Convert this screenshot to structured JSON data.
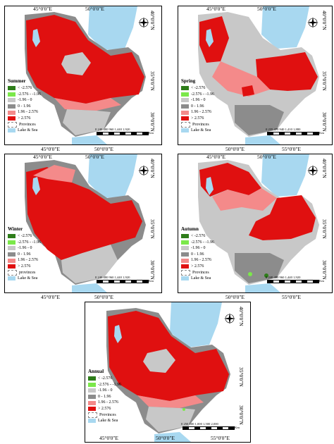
{
  "coords": {
    "lon_45": "45°0'0\"E",
    "lon_50": "50°0'0\"E",
    "lon_55": "55°0'0\"E",
    "lat_40": "40°0'0\"N",
    "lat_35": "35°0'0\"N",
    "lat_30": "30°0'0\"N"
  },
  "legend_items": [
    {
      "label": "< -2.576",
      "color": "#2e7d1a"
    },
    {
      "label": "-2.576 - -1.96",
      "color": "#7be84a"
    },
    {
      "label": "-1.96 - 0",
      "color": "#c8c8c8"
    },
    {
      "label": "0 - 1.96",
      "color": "#8c8c8c"
    },
    {
      "label": "1.96 - 2.576",
      "color": "#f48a8a"
    },
    {
      "label": "> 2.576",
      "color": "#e01010"
    },
    {
      "label": "Provinces",
      "color": "#ffffff"
    },
    {
      "label": "Lake & Sea",
      "color": "#a8d8f0"
    }
  ],
  "panels": [
    {
      "season": "Summer",
      "provinces_label": "Provinces",
      "scale_text": "0 240 480   960   1,440  1,920",
      "scale_unit": "Km"
    },
    {
      "season": "Spring",
      "provinces_label": "Provinces",
      "scale_text": "0 235 470   940   1,410  1,880",
      "scale_unit": "Km"
    },
    {
      "season": "Winter",
      "provinces_label": "provinces",
      "scale_text": "0 240 480   960   1,440  1,920",
      "scale_unit": "Km"
    },
    {
      "season": "Autumn",
      "provinces_label": "Provinces",
      "scale_text": "0 240 480   960   1,440  1,920",
      "scale_unit": "Km"
    },
    {
      "season": "Annual",
      "provinces_label": "Provinces",
      "scale_text": "0 250 500   1,000  1,500  2,000",
      "scale_unit": "Km"
    }
  ],
  "colors": {
    "red": "#e01010",
    "pink": "#f48a8a",
    "dark_gray": "#8c8c8c",
    "light_gray": "#c8c8c8",
    "water": "#a8d8f0"
  }
}
